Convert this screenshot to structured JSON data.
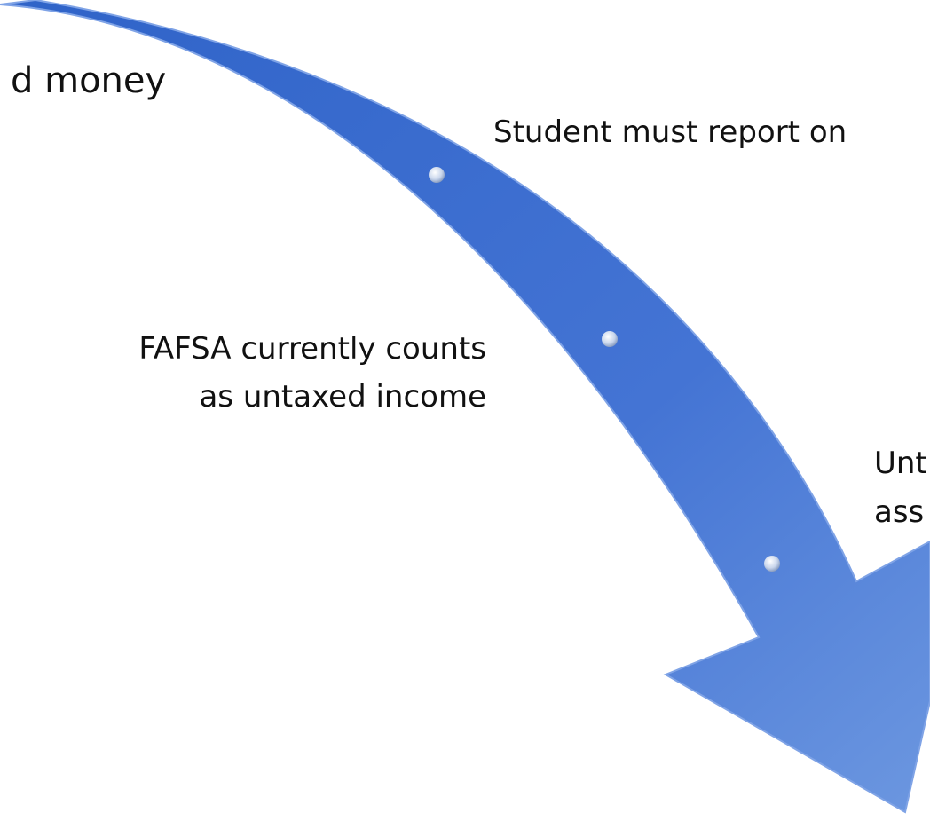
{
  "labels": [
    {
      "lines": [
        "d money"
      ]
    },
    {
      "lines": [
        "Student must report on"
      ]
    },
    {
      "lines": [
        "FAFSA currently counts",
        "as untaxed income"
      ]
    },
    {
      "lines": [
        "Unt",
        "ass"
      ]
    }
  ]
}
